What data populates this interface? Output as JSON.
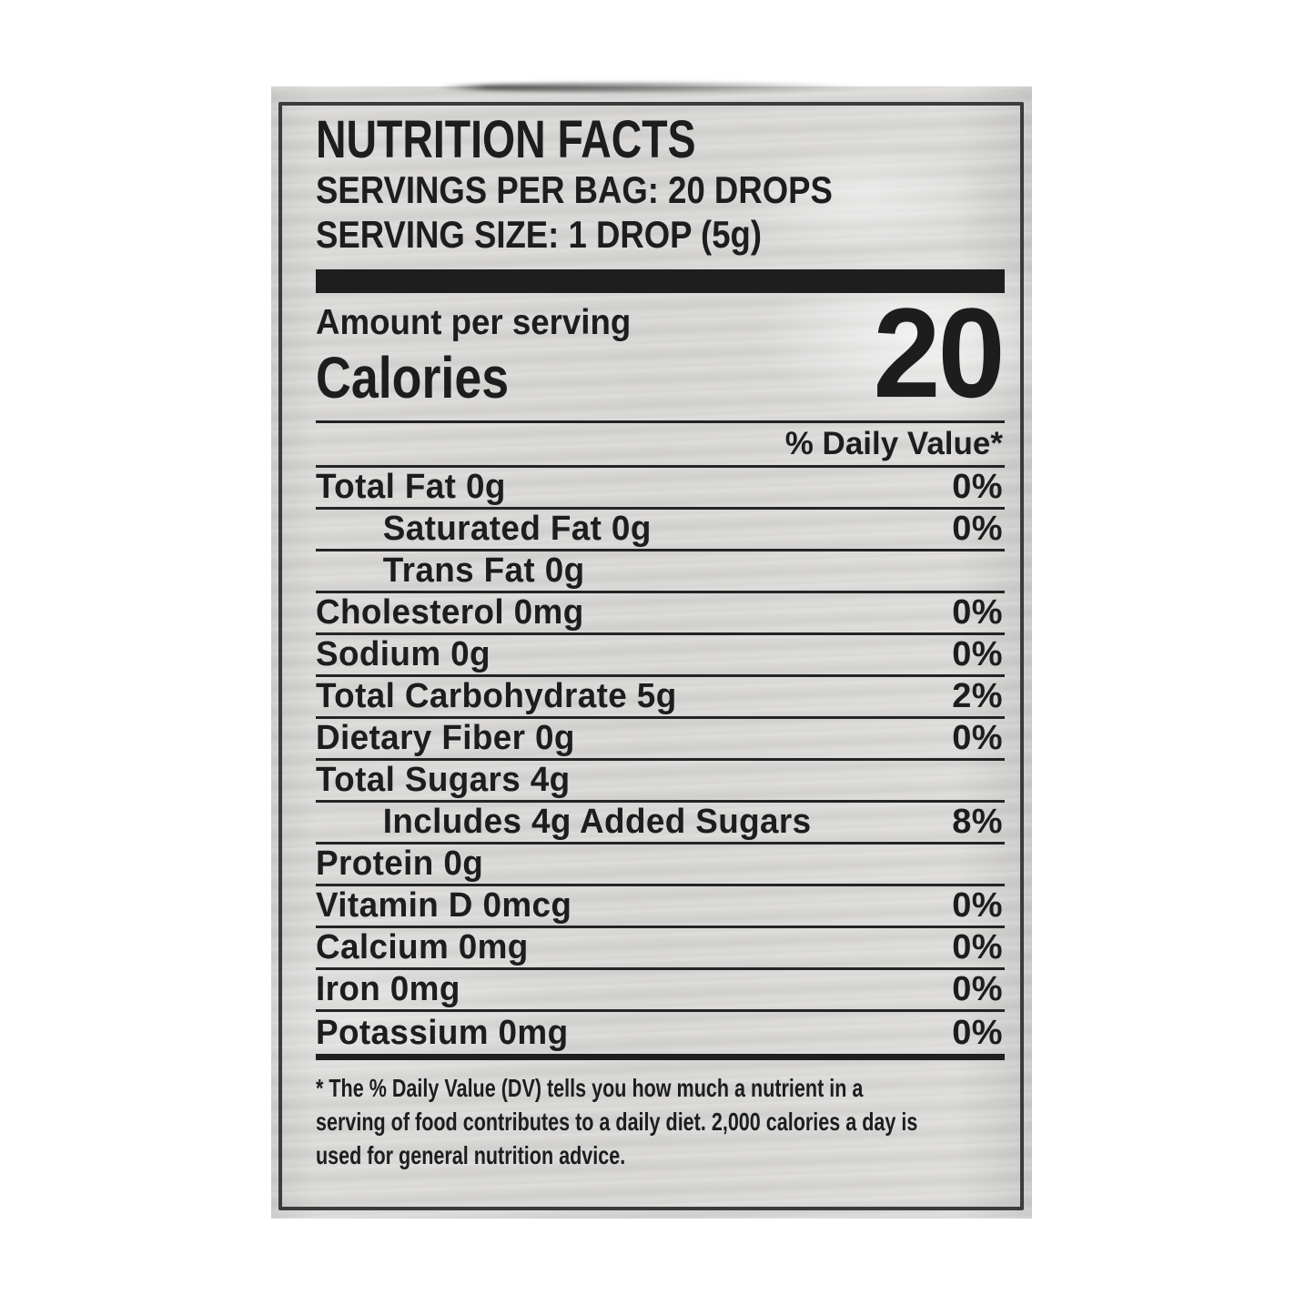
{
  "label": {
    "title": "NUTRITION FACTS",
    "servings_line": "SERVINGS PER BAG: 20 DROPS",
    "serving_size_line": "SERVING SIZE: 1 DROP (5g)",
    "amount_per_serving": "Amount per serving",
    "calories_label": "Calories",
    "calories_value": "20",
    "daily_value_header": "% Daily Value*",
    "rows": [
      {
        "label": "Total Fat 0g",
        "value": "0%",
        "indent": false
      },
      {
        "label": "Saturated Fat 0g",
        "value": "0%",
        "indent": true
      },
      {
        "label": "Trans Fat 0g",
        "value": "",
        "indent": true
      },
      {
        "label": "Cholesterol 0mg",
        "value": "0%",
        "indent": false
      },
      {
        "label": "Sodium 0g",
        "value": "0%",
        "indent": false
      },
      {
        "label": "Total Carbohydrate 5g",
        "value": "2%",
        "indent": false
      },
      {
        "label": "Dietary Fiber 0g",
        "value": "0%",
        "indent": false
      },
      {
        "label": "Total Sugars 4g",
        "value": "",
        "indent": false
      },
      {
        "label": "Includes 4g Added Sugars",
        "value": "8%",
        "indent": true
      },
      {
        "label": "Protein 0g",
        "value": "",
        "indent": false
      },
      {
        "label": "Vitamin D 0mcg",
        "value": "0%",
        "indent": false
      },
      {
        "label": "Calcium 0mg",
        "value": "0%",
        "indent": false
      },
      {
        "label": "Iron 0mg",
        "value": "0%",
        "indent": false
      },
      {
        "label": "Potassium 0mg",
        "value": "0%",
        "indent": false
      }
    ],
    "footnote_lines": [
      "* The % Daily Value (DV) tells you how much a nutrient in a",
      "serving of food contributes to a daily diet. 2,000 calories a day is",
      "used for general nutrition advice."
    ]
  },
  "colors": {
    "page_bg": "#ffffff",
    "bag": "#d6d5d3",
    "ink": "#1d1d1d",
    "panel_border": "#3b3b3b"
  }
}
